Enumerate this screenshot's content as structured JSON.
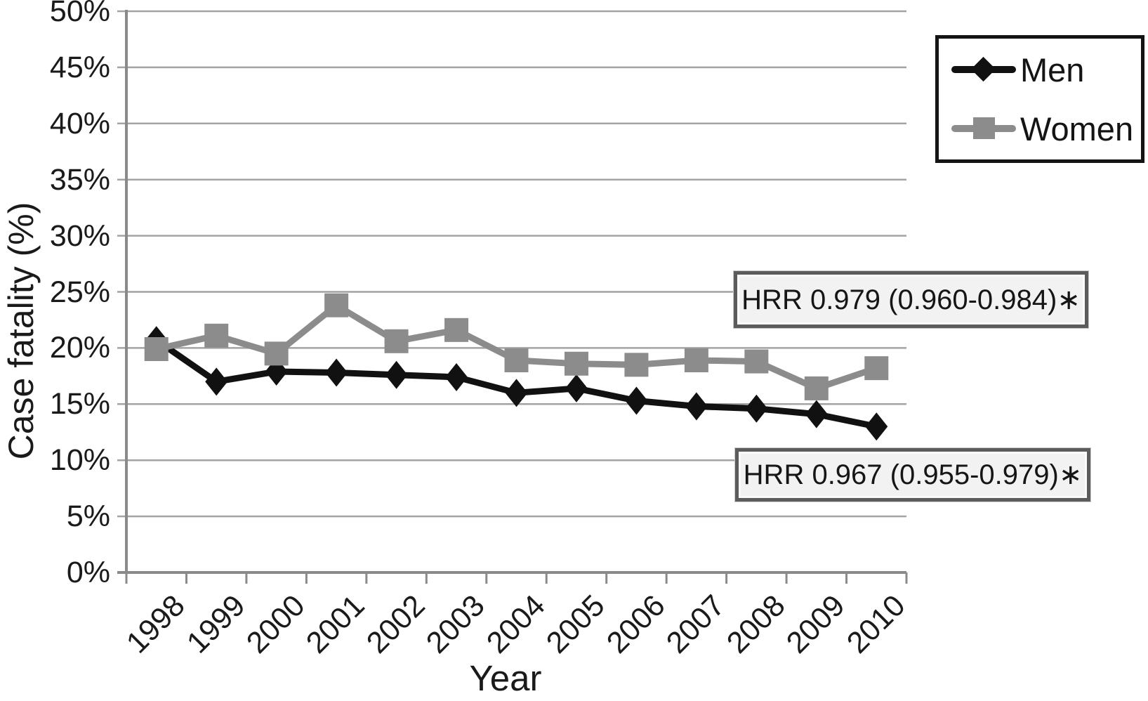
{
  "chart_data": {
    "type": "line",
    "title": "",
    "xlabel": "Year",
    "ylabel": "Case fatality (%)",
    "x": [
      "1998",
      "1999",
      "2000",
      "2001",
      "2002",
      "2003",
      "2004",
      "2005",
      "2006",
      "2007",
      "2008",
      "2009",
      "2010"
    ],
    "series": [
      {
        "name": "Men",
        "marker": "diamond",
        "color": "#111111",
        "values": [
          20.7,
          17.0,
          17.9,
          17.8,
          17.6,
          17.4,
          16.0,
          16.4,
          15.3,
          14.8,
          14.6,
          14.1,
          13.0
        ]
      },
      {
        "name": "Women",
        "marker": "square",
        "color": "#8c8c8c",
        "values": [
          19.9,
          21.1,
          19.5,
          23.8,
          20.6,
          21.6,
          18.9,
          18.6,
          18.5,
          18.9,
          18.8,
          16.4,
          18.2
        ]
      }
    ],
    "ylim": [
      0,
      50
    ],
    "ytick_step": 5,
    "ytick_suffix": "%",
    "grid": "horizontal",
    "legend_position": "top-right",
    "annotations": [
      {
        "text": "HRR 0.979 (0.960-0.984)∗",
        "target_series": "Women"
      },
      {
        "text": "HRR 0.967 (0.955-0.979)∗",
        "target_series": "Men"
      }
    ],
    "colors": {
      "grid": "#a3a3a3",
      "axis": "#8a8a8a",
      "men": "#111111",
      "women": "#8c8c8c",
      "annotation_bg": "#f2f2f2",
      "annotation_border": "#5c5c5c"
    }
  }
}
